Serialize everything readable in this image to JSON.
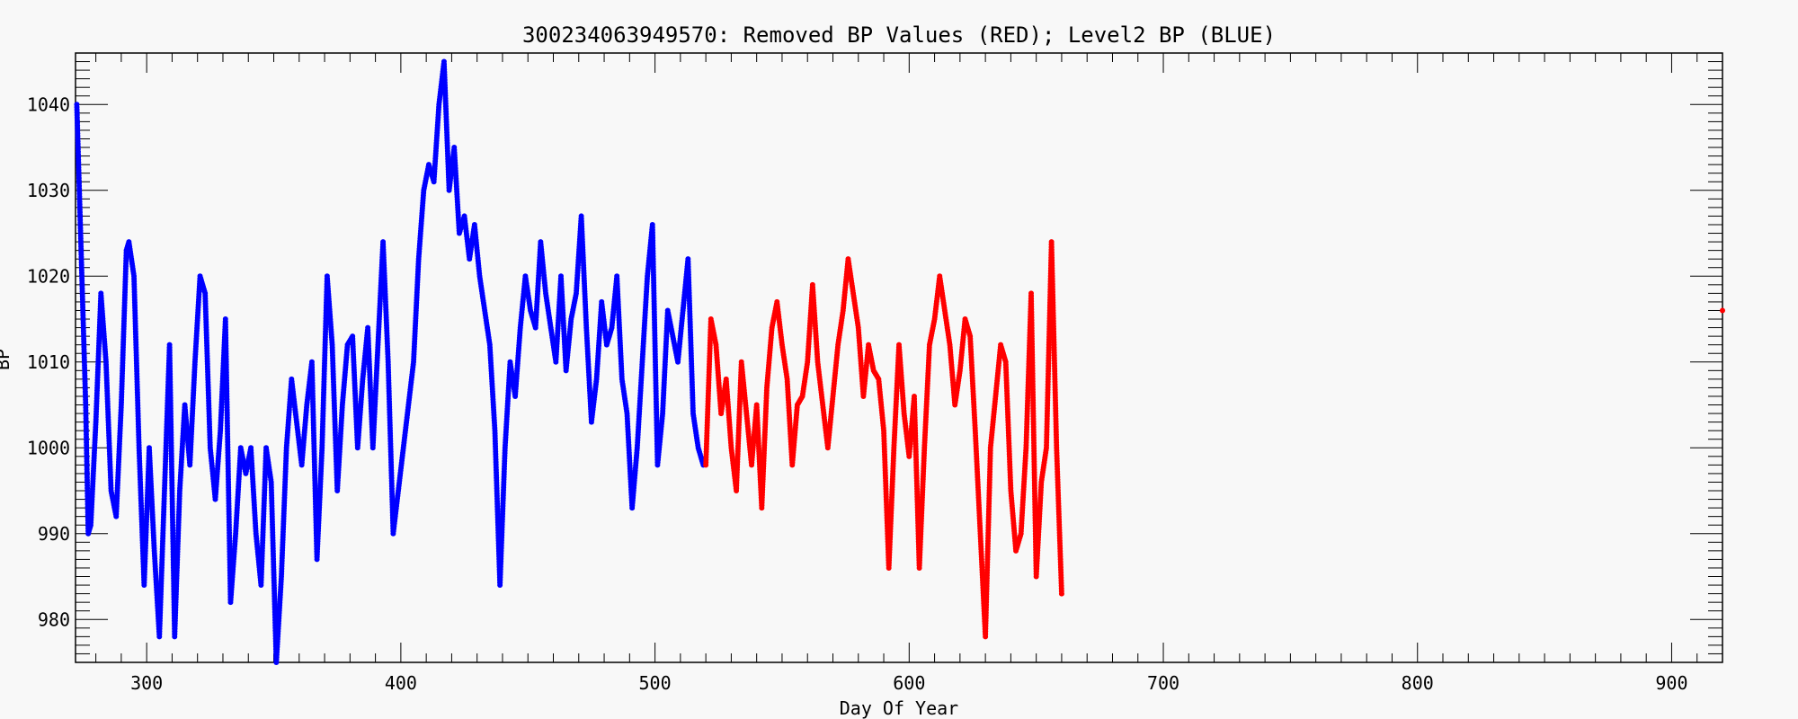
{
  "chart_data": {
    "type": "scatter",
    "title": "300234063949570: Removed BP Values (RED); Level2 BP (BLUE)",
    "xlabel": "Day Of Year",
    "ylabel": "BP",
    "xlim": [
      272,
      920
    ],
    "ylim": [
      975,
      1046
    ],
    "x_ticks": [
      300,
      400,
      500,
      600,
      700,
      800,
      900
    ],
    "y_ticks": [
      980,
      990,
      1000,
      1010,
      1020,
      1030,
      1040
    ],
    "grid": false,
    "series": [
      {
        "name": "Level2 BP",
        "color": "#0000ff",
        "x": [
          272.5,
          274,
          276,
          277,
          278,
          280,
          282,
          284,
          286,
          288,
          290,
          292,
          293,
          295,
          297,
          299,
          301,
          303,
          305,
          307,
          309,
          311,
          313,
          315,
          317,
          319,
          321,
          323,
          325,
          327,
          329,
          331,
          333,
          335,
          337,
          339,
          341,
          343,
          345,
          347,
          349,
          351,
          353,
          355,
          357,
          359,
          361,
          363,
          365,
          367,
          369,
          371,
          373,
          375,
          377,
          379,
          381,
          383,
          385,
          387,
          389,
          391,
          393,
          395,
          397,
          399,
          401,
          403,
          405,
          407,
          409,
          411,
          413,
          415,
          417,
          419,
          421,
          423,
          425,
          427,
          429,
          431,
          433,
          435,
          437,
          439,
          441,
          443,
          445,
          447,
          449,
          451,
          453,
          455,
          457,
          459,
          461,
          463,
          465,
          467,
          469,
          471,
          473,
          475,
          477,
          479,
          481,
          483,
          485,
          487,
          489,
          491,
          493,
          495,
          497,
          499,
          501,
          503,
          505,
          507,
          509,
          511,
          513,
          515,
          517,
          519
        ],
        "y": [
          1040,
          1025,
          1005,
          990,
          991,
          1003,
          1018,
          1010,
          995,
          992,
          1005,
          1023,
          1024,
          1020,
          1000,
          984,
          1000,
          988,
          978,
          995,
          1012,
          978,
          995,
          1005,
          998,
          1010,
          1020,
          1018,
          1000,
          994,
          1002,
          1015,
          982,
          990,
          1000,
          997,
          1000,
          990,
          984,
          1000,
          996,
          975,
          985,
          1000,
          1008,
          1003,
          998,
          1005,
          1010,
          987,
          1000,
          1020,
          1012,
          995,
          1005,
          1012,
          1013,
          1000,
          1008,
          1014,
          1000,
          1012,
          1024,
          1010,
          990,
          995,
          1000,
          1005,
          1010,
          1022,
          1030,
          1033,
          1031,
          1040,
          1045,
          1030,
          1035,
          1025,
          1027,
          1022,
          1026,
          1020,
          1016,
          1012,
          1002,
          984,
          1000,
          1010,
          1006,
          1014,
          1020,
          1016,
          1014,
          1024,
          1018,
          1014,
          1010,
          1020,
          1009,
          1015,
          1018,
          1027,
          1014,
          1003,
          1008,
          1017,
          1012,
          1014,
          1020,
          1008,
          1004,
          993,
          1000,
          1010,
          1020,
          1026,
          998,
          1004,
          1016,
          1013,
          1010,
          1016,
          1022,
          1004,
          1000,
          998
        ]
      },
      {
        "name": "Removed BP Values",
        "color": "#ff0000",
        "x": [
          520,
          522,
          524,
          526,
          528,
          530,
          532,
          534,
          536,
          538,
          540,
          542,
          544,
          546,
          548,
          550,
          552,
          554,
          556,
          558,
          560,
          562,
          564,
          566,
          568,
          570,
          572,
          574,
          576,
          578,
          580,
          582,
          584,
          586,
          588,
          590,
          592,
          594,
          596,
          598,
          600,
          602,
          604,
          606,
          608,
          610,
          612,
          614,
          616,
          618,
          620,
          622,
          624,
          626,
          628,
          630,
          632,
          634,
          636,
          638,
          640,
          642,
          644,
          646,
          648,
          650,
          652,
          654,
          656,
          658,
          660,
          920
        ],
        "y": [
          998,
          1015,
          1012,
          1004,
          1008,
          1000,
          995,
          1010,
          1004,
          998,
          1005,
          993,
          1007,
          1014,
          1017,
          1012,
          1008,
          998,
          1005,
          1006,
          1010,
          1019,
          1010,
          1005,
          1000,
          1006,
          1012,
          1016,
          1022,
          1018,
          1014,
          1006,
          1012,
          1009,
          1008,
          1002,
          986,
          1000,
          1012,
          1004,
          999,
          1006,
          986,
          1000,
          1012,
          1015,
          1020,
          1016,
          1012,
          1005,
          1009,
          1015,
          1013,
          1002,
          990,
          978,
          1000,
          1006,
          1012,
          1010,
          995,
          988,
          990,
          1000,
          1018,
          985,
          996,
          1000,
          1024,
          1000,
          983,
          1016
        ]
      }
    ]
  }
}
